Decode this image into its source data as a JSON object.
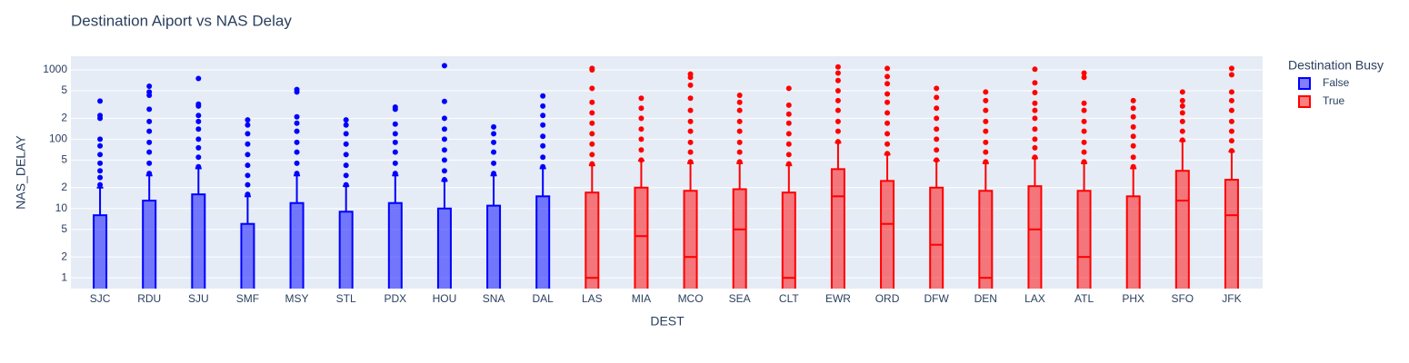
{
  "chart_data": {
    "type": "box",
    "title": "Destination Aiport vs NAS Delay",
    "x_label": "DEST",
    "y_label": "NAS_DELAY",
    "legend_title": "Destination Busy",
    "legend_position": "right",
    "log_y": true,
    "grid": true,
    "categories": [
      "SJC",
      "RDU",
      "SJU",
      "SMF",
      "MSY",
      "STL",
      "PDX",
      "HOU",
      "SNA",
      "DAL",
      "LAS",
      "MIA",
      "MCO",
      "SEA",
      "CLT",
      "EWR",
      "ORD",
      "DFW",
      "DEN",
      "LAX",
      "ATL",
      "PHX",
      "SFO",
      "JFK"
    ],
    "ylim": [
      0.7,
      1570
    ],
    "yticks": [
      1,
      2,
      5,
      10,
      {
        "value": 20,
        "label": "2"
      },
      {
        "value": 50,
        "label": "5"
      },
      100,
      {
        "value": 200,
        "label": "2"
      },
      {
        "value": 500,
        "label": "5"
      },
      1000
    ],
    "series": [
      {
        "name": "False",
        "color": "#0000ff",
        "values": [
          {
            "q1": 0,
            "median": 0,
            "q3": 8,
            "upperfence": 20,
            "outliers": [
              22,
              28,
              35,
              45,
              60,
              80,
              100,
              200,
              220,
              355
            ]
          },
          {
            "q1": 0,
            "median": 0,
            "q3": 13,
            "upperfence": 30,
            "outliers": [
              32,
              45,
              65,
              90,
              130,
              180,
              270,
              430,
              480,
              580
            ]
          },
          {
            "q1": 0,
            "median": 0,
            "q3": 16,
            "upperfence": 38,
            "outliers": [
              40,
              55,
              75,
              100,
              140,
              180,
              220,
              300,
              320,
              750
            ]
          },
          {
            "q1": 0,
            "median": 0,
            "q3": 6,
            "upperfence": 15,
            "outliers": [
              16,
              22,
              30,
              42,
              60,
              85,
              120,
              160,
              190
            ]
          },
          {
            "q1": 0,
            "median": 0,
            "q3": 12,
            "upperfence": 30,
            "outliers": [
              32,
              45,
              65,
              90,
              130,
              170,
              210,
              480,
              520
            ]
          },
          {
            "q1": 0,
            "median": 0,
            "q3": 9,
            "upperfence": 21,
            "outliers": [
              22,
              30,
              42,
              60,
              85,
              120,
              160,
              190
            ]
          },
          {
            "q1": 0,
            "median": 0,
            "q3": 12,
            "upperfence": 30,
            "outliers": [
              32,
              45,
              65,
              90,
              120,
              165,
              270,
              290
            ]
          },
          {
            "q1": 0,
            "median": 0,
            "q3": 10,
            "upperfence": 25,
            "outliers": [
              26,
              35,
              50,
              70,
              100,
              140,
              200,
              350,
              1150
            ]
          },
          {
            "q1": 0,
            "median": 0,
            "q3": 11,
            "upperfence": 30,
            "outliers": [
              32,
              45,
              65,
              90,
              120,
              150
            ]
          },
          {
            "q1": 0,
            "median": 0,
            "q3": 15,
            "upperfence": 38,
            "outliers": [
              40,
              55,
              80,
              110,
              160,
              220,
              300,
              420
            ]
          },
          null,
          null,
          null,
          null,
          null,
          null,
          null,
          null,
          null,
          null,
          null,
          null,
          null,
          null
        ]
      },
      {
        "name": "True",
        "color": "#ff0000",
        "values": [
          null,
          null,
          null,
          null,
          null,
          null,
          null,
          null,
          null,
          null,
          {
            "q1": 0,
            "median": 1,
            "q3": 17,
            "upperfence": 42,
            "outliers": [
              44,
              60,
              85,
              120,
              170,
              240,
              340,
              540,
              1000,
              1050
            ]
          },
          {
            "q1": 0,
            "median": 4,
            "q3": 20,
            "upperfence": 49,
            "outliers": [
              50,
              70,
              100,
              140,
              200,
              280,
              390
            ]
          },
          {
            "q1": 0,
            "median": 2,
            "q3": 18,
            "upperfence": 45,
            "outliers": [
              47,
              65,
              90,
              130,
              180,
              260,
              390,
              600,
              780,
              870
            ]
          },
          {
            "q1": 0,
            "median": 5,
            "q3": 19,
            "upperfence": 45,
            "outliers": [
              47,
              65,
              90,
              130,
              180,
              260,
              340,
              430
            ]
          },
          {
            "q1": 0,
            "median": 1,
            "q3": 17,
            "upperfence": 42,
            "outliers": [
              44,
              60,
              85,
              120,
              170,
              230,
              310,
              540
            ]
          },
          {
            "q1": 0,
            "median": 15,
            "q3": 37,
            "upperfence": 89,
            "outliers": [
              92,
              130,
              180,
              260,
              360,
              500,
              700,
              900,
              1100
            ]
          },
          {
            "q1": 0,
            "median": 6,
            "q3": 25,
            "upperfence": 60,
            "outliers": [
              62,
              85,
              120,
              170,
              240,
              340,
              450,
              630,
              800,
              1050
            ]
          },
          {
            "q1": 0,
            "median": 3,
            "q3": 20,
            "upperfence": 49,
            "outliers": [
              50,
              70,
              100,
              140,
              200,
              280,
              400,
              540
            ]
          },
          {
            "q1": 0,
            "median": 1,
            "q3": 18,
            "upperfence": 45,
            "outliers": [
              47,
              65,
              90,
              130,
              180,
              260,
              360,
              480
            ]
          },
          {
            "q1": 0,
            "median": 5,
            "q3": 21,
            "upperfence": 53,
            "outliers": [
              55,
              75,
              100,
              140,
              200,
              260,
              330,
              470,
              650,
              1020
            ]
          },
          {
            "q1": 0,
            "median": 2,
            "q3": 18,
            "upperfence": 45,
            "outliers": [
              47,
              65,
              90,
              130,
              180,
              260,
              330,
              780,
              900
            ]
          },
          {
            "q1": 0,
            "median": 0,
            "q3": 15,
            "upperfence": 38,
            "outliers": [
              40,
              55,
              80,
              110,
              150,
              210,
              280,
              360
            ]
          },
          {
            "q1": 0,
            "median": 13,
            "q3": 35,
            "upperfence": 94,
            "outliers": [
              97,
              130,
              180,
              240,
              300,
              360,
              480
            ]
          },
          {
            "q1": 0,
            "median": 8,
            "q3": 26,
            "upperfence": 66,
            "outliers": [
              68,
              95,
              130,
              180,
              260,
              360,
              480,
              850,
              1050
            ]
          }
        ]
      }
    ]
  }
}
